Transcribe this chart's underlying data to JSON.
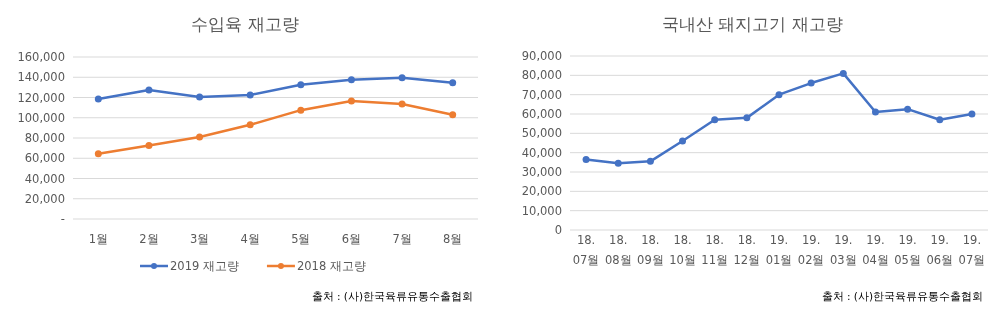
{
  "chart_data": [
    {
      "type": "line",
      "title": "수입육 재고량",
      "categories": [
        "1월",
        "2월",
        "3월",
        "4월",
        "5월",
        "6월",
        "7월",
        "8월"
      ],
      "series": [
        {
          "name": "2019 재고량",
          "color": "#4472c4",
          "values": [
            118500,
            127500,
            120500,
            122500,
            132500,
            137500,
            139500,
            134500
          ]
        },
        {
          "name": "2018 재고량",
          "color": "#ed7d31",
          "values": [
            64500,
            72500,
            81000,
            93000,
            107500,
            116500,
            113500,
            103000
          ]
        }
      ],
      "ylim": [
        0,
        160000
      ],
      "yticks": [
        {
          "value": 0,
          "label": "-"
        },
        {
          "value": 20000,
          "label": "20,000"
        },
        {
          "value": 40000,
          "label": "40,000"
        },
        {
          "value": 60000,
          "label": "60,000"
        },
        {
          "value": 80000,
          "label": "80,000"
        },
        {
          "value": 100000,
          "label": "100,000"
        },
        {
          "value": 120000,
          "label": "120,000"
        },
        {
          "value": 140000,
          "label": "140,000"
        },
        {
          "value": 160000,
          "label": "160,000"
        }
      ],
      "grid": "y",
      "legend": "bottom",
      "marker": "circle",
      "annotations": [
        "출처 : (사)한국육류유통수출협회"
      ]
    },
    {
      "type": "line",
      "title": "국내산 돼지고기 재고량",
      "categories": [
        "18. 07월",
        "18. 08월",
        "18. 09월",
        "18. 10월",
        "18. 11월",
        "18. 12월",
        "19. 01월",
        "19. 02월",
        "19. 03월",
        "19. 04월",
        "19. 05월",
        "19. 06월",
        "19. 07월"
      ],
      "series": [
        {
          "color": "#4472c4",
          "values": [
            36500,
            34500,
            35500,
            46000,
            57000,
            58000,
            70000,
            76000,
            81000,
            61000,
            62500,
            57000,
            60000
          ]
        }
      ],
      "ylim": [
        0,
        90000
      ],
      "yticks": [
        0,
        {
          "value": 10000,
          "label": "10,000"
        },
        {
          "value": 20000,
          "label": "20,000"
        },
        {
          "value": 30000,
          "label": "30,000"
        },
        {
          "value": 40000,
          "label": "40,000"
        },
        {
          "value": 50000,
          "label": "50,000"
        },
        {
          "value": 60000,
          "label": "60,000"
        },
        {
          "value": 70000,
          "label": "70,000"
        },
        {
          "value": 80000,
          "label": "80,000"
        },
        {
          "value": 90000,
          "label": "90,000"
        }
      ],
      "grid": "y",
      "marker": "circle",
      "annotations": [
        "출처 : (사)한국육류유통수출협회"
      ]
    }
  ]
}
